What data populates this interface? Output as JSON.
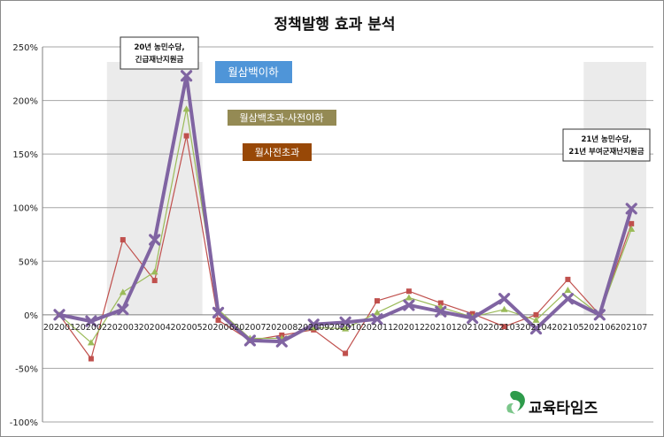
{
  "chart_data": {
    "type": "line",
    "title": "정책발행 효과 분석",
    "categories": [
      "202001",
      "202002",
      "202003",
      "202004",
      "202005",
      "202006",
      "202007",
      "202008",
      "202009",
      "202010",
      "202011",
      "202012",
      "202101",
      "202102",
      "202103",
      "202104",
      "202105",
      "202106",
      "202107"
    ],
    "ylim": [
      -100,
      250
    ],
    "yticks": [
      -100,
      -50,
      0,
      50,
      100,
      150,
      200,
      250
    ],
    "ytick_labels": [
      "-100%",
      "-50%",
      "0%",
      "50%",
      "100%",
      "150%",
      "200%",
      "250%"
    ],
    "grid": true,
    "series": [
      {
        "name": "월삼백이하",
        "color": "#8064a2",
        "marker": "x",
        "values": [
          0,
          -6,
          5,
          70,
          223,
          2,
          -24,
          -25,
          -9,
          -7,
          -4,
          9,
          3,
          -3,
          15,
          -13,
          15,
          0,
          99
        ]
      },
      {
        "name": "월삼백초과-사전이하",
        "color": "#9bbb59",
        "marker": "triangle",
        "values": [
          0,
          -26,
          21,
          40,
          192,
          5,
          -22,
          -22,
          -12,
          -13,
          2,
          16,
          7,
          -2,
          5,
          -5,
          23,
          0,
          80
        ]
      },
      {
        "name": "월사전초과",
        "color": "#c0504d",
        "marker": "square",
        "values": [
          0,
          -41,
          70,
          32,
          167,
          -5,
          -24,
          -19,
          -14,
          -36,
          13,
          22,
          11,
          1,
          -11,
          0,
          33,
          0,
          85
        ]
      }
    ],
    "shaded_periods": [
      {
        "from": "202003",
        "to": "202005",
        "label_lines": [
          "20년 농민수당,",
          "긴급재난지원금"
        ]
      },
      {
        "from": "202106",
        "to": "202107",
        "label_lines": [
          "21년 농민수당,",
          "21년 부여군재난지원금"
        ]
      }
    ],
    "legend_placement": "top-center"
  },
  "legend": [
    {
      "label": "월삼백이하",
      "color": "#4f95d8"
    },
    {
      "label": "월삼백초과-사전이하",
      "color": "#948a54"
    },
    {
      "label": "월사전초과",
      "color": "#984807"
    }
  ],
  "logo": {
    "text": "교육타임즈",
    "color": "#2e9b4b"
  }
}
